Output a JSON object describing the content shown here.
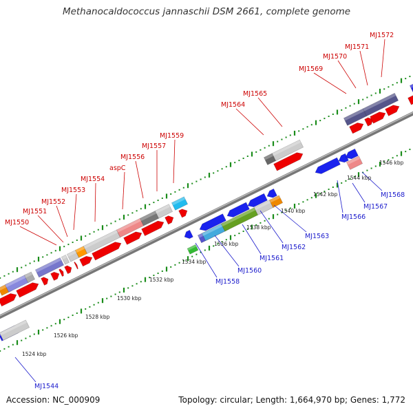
{
  "title": "Methanocaldococcus jannaschii DSM 2661, complete genome",
  "footer": {
    "accession": "Accession: NC_000909",
    "summary": "Topology: circular; Length: 1,664,970 bp; Genes: 1,772"
  },
  "colors": {
    "forward_label": "#cc0000",
    "reverse_label": "#1a1acc",
    "tick": "#1a8c1a",
    "axis": "#888888"
  },
  "kbp_marks": [
    "1524 kbp",
    "1526 kbp",
    "1528 kbp",
    "1530 kbp",
    "1532 kbp",
    "1534 kbp",
    "1536 kbp",
    "1538 kbp",
    "1540 kbp",
    "1542 kbp",
    "1544 kbp",
    "1546 kbp"
  ],
  "forward_labels": [
    "MJ1550",
    "MJ1551",
    "MJ1552",
    "MJ1553",
    "MJ1554",
    "aspC",
    "MJ1556",
    "MJ1557",
    "MJ1559",
    "MJ1564",
    "MJ1565",
    "MJ1569",
    "MJ1570",
    "MJ1571",
    "MJ1572"
  ],
  "reverse_labels": [
    "MJ1544",
    "MJ1558",
    "MJ1560",
    "MJ1561",
    "MJ1562",
    "MJ1563",
    "MJ1566",
    "MJ1567",
    "MJ1568"
  ]
}
